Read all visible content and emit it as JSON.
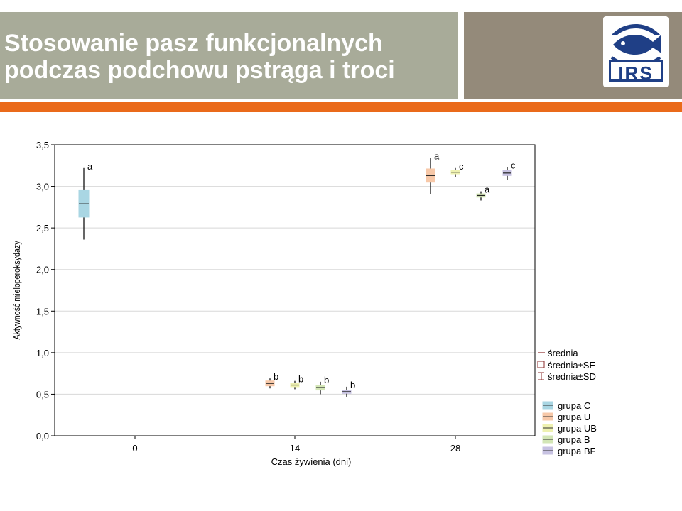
{
  "slide": {
    "title": "Stosowanie pasz funkcjonalnych\npodczas podchowu pstrąga i troci",
    "logo_text": "IRS",
    "logo_icon": "fish-icon"
  },
  "colors": {
    "title_band": "#a8ab99",
    "logo_band": "#948a7a",
    "accent_bar": "#ea6a1a",
    "logo_blue": "#1f3f86"
  },
  "chart_data": {
    "type": "box",
    "ylabel": "Aktywność mieloperoksydazy",
    "xlabel": "Czas żywienia (dni)",
    "ylim": [
      0,
      3.5
    ],
    "yticks": [
      "0,0",
      "0,5",
      "1,0",
      "1,5",
      "2,0",
      "2,5",
      "3,0",
      "3,5"
    ],
    "xticks": [
      "0",
      "14",
      "28"
    ],
    "grid": true,
    "stat_legend": [
      "średnia",
      "średnia±SE",
      "średnia±SD"
    ],
    "series": [
      {
        "name": "grupa C",
        "color": "#a9d6e3"
      },
      {
        "name": "grupa U",
        "color": "#f7c8a8"
      },
      {
        "name": "grupa UB",
        "color": "#eef1b0"
      },
      {
        "name": "grupa B",
        "color": "#d3e6b6"
      },
      {
        "name": "grupa BF",
        "color": "#c7c2e2"
      }
    ],
    "points": [
      {
        "group": "grupa C",
        "day": "0",
        "mean": 2.79,
        "se_low": 2.63,
        "se_high": 2.95,
        "sd_low": 2.36,
        "sd_high": 3.22,
        "letter": "a"
      },
      {
        "group": "grupa U",
        "day": "14",
        "mean": 0.63,
        "se_low": 0.6,
        "se_high": 0.66,
        "sd_low": 0.57,
        "sd_high": 0.69,
        "letter": "b"
      },
      {
        "group": "grupa UB",
        "day": "14",
        "mean": 0.61,
        "se_low": 0.59,
        "se_high": 0.63,
        "sd_low": 0.56,
        "sd_high": 0.66,
        "letter": "b"
      },
      {
        "group": "grupa B",
        "day": "14",
        "mean": 0.58,
        "se_low": 0.55,
        "se_high": 0.61,
        "sd_low": 0.5,
        "sd_high": 0.65,
        "letter": "b"
      },
      {
        "group": "grupa BF",
        "day": "14",
        "mean": 0.53,
        "se_low": 0.51,
        "se_high": 0.55,
        "sd_low": 0.47,
        "sd_high": 0.59,
        "letter": "b"
      },
      {
        "group": "grupa U",
        "day": "28",
        "mean": 3.13,
        "se_low": 3.05,
        "se_high": 3.21,
        "sd_low": 2.91,
        "sd_high": 3.34,
        "letter": "a"
      },
      {
        "group": "grupa UB",
        "day": "28",
        "mean": 3.17,
        "se_low": 3.15,
        "se_high": 3.19,
        "sd_low": 3.11,
        "sd_high": 3.22,
        "letter": "c"
      },
      {
        "group": "grupa B",
        "day": "28",
        "mean": 2.89,
        "se_low": 2.87,
        "se_high": 2.91,
        "sd_low": 2.83,
        "sd_high": 2.94,
        "letter": "a"
      },
      {
        "group": "grupa BF",
        "day": "28",
        "mean": 3.16,
        "se_low": 3.13,
        "se_high": 3.19,
        "sd_low": 3.08,
        "sd_high": 3.23,
        "letter": "c"
      }
    ]
  }
}
